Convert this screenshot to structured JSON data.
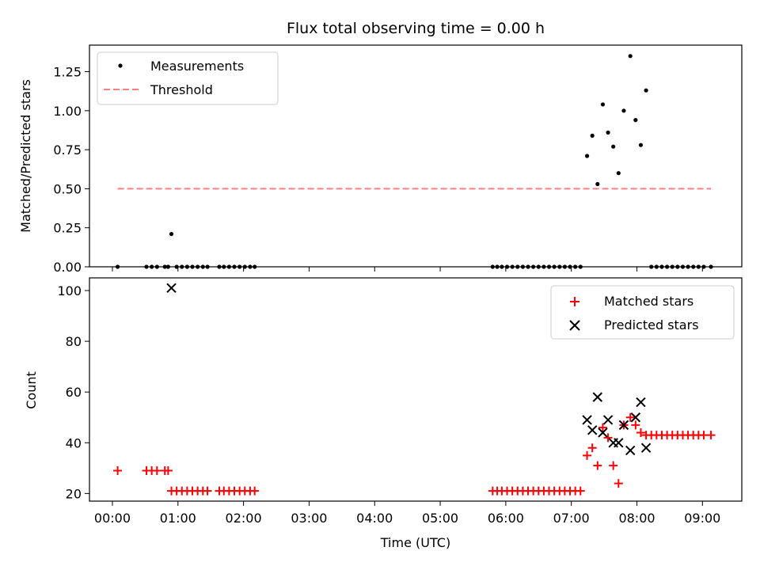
{
  "title": "Flux total observing time = 0.00 h",
  "top_panel": {
    "ylabel": "Matched/Predicted stars",
    "legend": {
      "measurements": "Measurements",
      "threshold": "Threshold"
    },
    "ylim": [
      0,
      1.42
    ],
    "yticks": [
      0,
      0.25,
      0.5,
      0.75,
      1.0,
      1.25
    ],
    "ytick_labels": [
      "0.00",
      "0.25",
      "0.50",
      "0.75",
      "1.00",
      "1.25"
    ]
  },
  "bottom_panel": {
    "ylabel": "Count",
    "xlabel": "Time (UTC)",
    "legend": {
      "matched": "Matched stars",
      "predicted": "Predicted stars"
    },
    "ylim": [
      17,
      105
    ],
    "yticks": [
      20,
      40,
      60,
      80,
      100
    ],
    "ytick_labels": [
      "20",
      "40",
      "60",
      "80",
      "100"
    ]
  },
  "xaxis": {
    "xlim_hours": [
      -0.35,
      9.6
    ],
    "ticks_hours": [
      0,
      1,
      2,
      3,
      4,
      5,
      6,
      7,
      8,
      9
    ],
    "tick_labels": [
      "00:00",
      "01:00",
      "02:00",
      "03:00",
      "04:00",
      "05:00",
      "06:00",
      "07:00",
      "08:00",
      "09:00"
    ]
  },
  "colors": {
    "measurements": "#000000",
    "threshold": "#ff7f7f",
    "matched": "#ff0000",
    "predicted": "#000000"
  },
  "chart_data": {
    "type": "scatter",
    "title": "Flux total observing time = 0.00 h",
    "threshold": {
      "value": 0.5,
      "x_range_hours": [
        0.08,
        9.13
      ]
    },
    "ratio_series": {
      "name": "Measurements",
      "x_hours": [
        0.08,
        0.52,
        0.6,
        0.68,
        0.8,
        0.85,
        0.9,
        0.98,
        1.06,
        1.14,
        1.22,
        1.3,
        1.38,
        1.45,
        1.63,
        1.7,
        1.78,
        1.86,
        1.94,
        2.02,
        2.1,
        2.17,
        5.8,
        5.87,
        5.94,
        6.02,
        6.1,
        6.18,
        6.26,
        6.34,
        6.42,
        6.5,
        6.58,
        6.66,
        6.74,
        6.82,
        6.9,
        6.98,
        7.06,
        7.14,
        7.24,
        7.32,
        7.4,
        7.48,
        7.56,
        7.64,
        7.72,
        7.8,
        7.9,
        7.98,
        8.06,
        8.14,
        8.22,
        8.3,
        8.38,
        8.46,
        8.54,
        8.62,
        8.7,
        8.78,
        8.86,
        8.94,
        9.02,
        9.13
      ],
      "y": [
        0,
        0,
        0,
        0,
        0,
        0,
        0.21,
        0,
        0,
        0,
        0,
        0,
        0,
        0,
        0,
        0,
        0,
        0,
        0,
        0,
        0,
        0,
        0,
        0,
        0,
        0,
        0,
        0,
        0,
        0,
        0,
        0,
        0,
        0,
        0,
        0,
        0,
        0,
        0,
        0,
        0.71,
        0.84,
        0.53,
        1.04,
        0.86,
        0.77,
        0.6,
        1.0,
        1.35,
        0.94,
        0.78,
        1.13,
        0,
        0,
        0,
        0,
        0,
        0,
        0,
        0,
        0,
        0,
        0,
        0
      ]
    },
    "matched_series": {
      "name": "Matched stars",
      "x_hours": [
        0.08,
        0.52,
        0.6,
        0.68,
        0.8,
        0.85,
        0.9,
        0.98,
        1.06,
        1.14,
        1.22,
        1.3,
        1.38,
        1.45,
        1.63,
        1.7,
        1.78,
        1.86,
        1.94,
        2.02,
        2.1,
        2.17,
        5.8,
        5.87,
        5.94,
        6.02,
        6.1,
        6.18,
        6.26,
        6.34,
        6.42,
        6.5,
        6.58,
        6.66,
        6.74,
        6.82,
        6.9,
        6.98,
        7.06,
        7.14,
        7.24,
        7.32,
        7.4,
        7.48,
        7.56,
        7.64,
        7.72,
        7.8,
        7.9,
        7.98,
        8.06,
        8.14,
        8.22,
        8.3,
        8.38,
        8.46,
        8.54,
        8.62,
        8.7,
        8.78,
        8.86,
        8.94,
        9.02,
        9.13
      ],
      "y": [
        29,
        29,
        29,
        29,
        29,
        29,
        21,
        21,
        21,
        21,
        21,
        21,
        21,
        21,
        21,
        21,
        21,
        21,
        21,
        21,
        21,
        21,
        21,
        21,
        21,
        21,
        21,
        21,
        21,
        21,
        21,
        21,
        21,
        21,
        21,
        21,
        21,
        21,
        21,
        21,
        35,
        38,
        31,
        46,
        42,
        31,
        24,
        47,
        50,
        47,
        44,
        43,
        43,
        43,
        43,
        43,
        43,
        43,
        43,
        43,
        43,
        43,
        43,
        43
      ]
    },
    "predicted_series": {
      "name": "Predicted stars",
      "x_hours": [
        0.9,
        7.24,
        7.32,
        7.4,
        7.48,
        7.56,
        7.64,
        7.72,
        7.8,
        7.9,
        7.98,
        8.06,
        8.14
      ],
      "y": [
        101,
        49,
        45,
        58,
        44,
        49,
        40,
        40,
        47,
        37,
        50,
        56,
        38
      ]
    },
    "xlabel": "Time (UTC)",
    "ylabel_top": "Matched/Predicted stars",
    "ylabel_bottom": "Count",
    "legend_top": "upper-left",
    "legend_bottom": "upper-right",
    "grid": false
  }
}
